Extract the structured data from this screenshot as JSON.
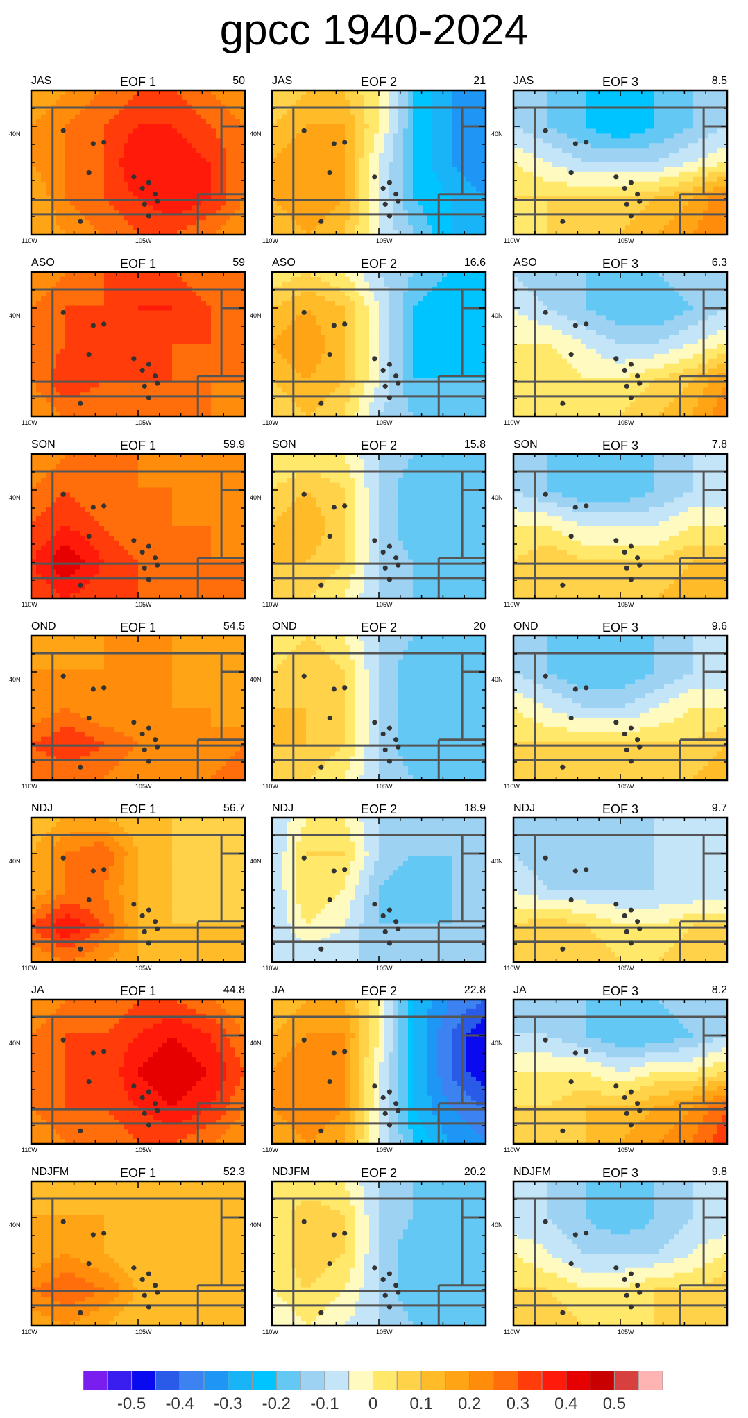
{
  "title": "gpcc 1940-2024",
  "lat_label": "40N",
  "lon_labels": [
    "110W",
    "105W"
  ],
  "colorbar": {
    "colors": [
      "#7a1ef0",
      "#3a1ef0",
      "#0a0af0",
      "#2a5ae8",
      "#3c82f0",
      "#1e96f5",
      "#19b4f8",
      "#00c4ff",
      "#64c8f5",
      "#9ed2f2",
      "#c4e4f8",
      "#fffac0",
      "#ffe86a",
      "#ffd24a",
      "#ffbc28",
      "#ffa414",
      "#ff8c0a",
      "#ff6e0a",
      "#ff3c0a",
      "#ff1a0a",
      "#e60000",
      "#c80000",
      "#d84040",
      "#ffb4b4"
    ],
    "labels": [
      "-0.5",
      "-0.4",
      "-0.3",
      "-0.2",
      "-0.1",
      "0",
      "0.1",
      "0.2",
      "0.3",
      "0.4",
      "0.5"
    ]
  },
  "chart_data": {
    "type": "heatmap",
    "columns": [
      "EOF 1",
      "EOF 2",
      "EOF 3"
    ],
    "rows": [
      {
        "season": "JAS",
        "pct": [
          "50",
          "21",
          "8.5"
        ]
      },
      {
        "season": "ASO",
        "pct": [
          "59",
          "16.6",
          "6.3"
        ]
      },
      {
        "season": "SON",
        "pct": [
          "59.9",
          "15.8",
          "7.8"
        ]
      },
      {
        "season": "OND",
        "pct": [
          "54.5",
          "20",
          "9.6"
        ]
      },
      {
        "season": "NDJ",
        "pct": [
          "56.7",
          "18.9",
          "9.7"
        ]
      },
      {
        "season": "JA",
        "pct": [
          "44.8",
          "22.8",
          "8.2"
        ]
      },
      {
        "season": "NDJFM",
        "pct": [
          "52.3",
          "20.2",
          "9.8"
        ]
      }
    ],
    "fields": {
      "EOF 1": [
        [
          [
            0.2,
            0.25,
            0.3,
            0.35,
            0.35,
            0.3,
            0.25
          ],
          [
            0.25,
            0.3,
            0.35,
            0.4,
            0.4,
            0.35,
            0.3
          ],
          [
            0.25,
            0.3,
            0.35,
            0.45,
            0.45,
            0.4,
            0.3
          ],
          [
            0.2,
            0.3,
            0.35,
            0.4,
            0.45,
            0.4,
            0.3
          ],
          [
            0.2,
            0.25,
            0.3,
            0.35,
            0.35,
            0.3,
            0.25
          ]
        ],
        [
          [
            0.25,
            0.3,
            0.35,
            0.35,
            0.35,
            0.3,
            0.3
          ],
          [
            0.3,
            0.35,
            0.35,
            0.4,
            0.4,
            0.35,
            0.3
          ],
          [
            0.3,
            0.35,
            0.35,
            0.4,
            0.35,
            0.35,
            0.3
          ],
          [
            0.3,
            0.4,
            0.35,
            0.35,
            0.35,
            0.3,
            0.3
          ],
          [
            0.25,
            0.3,
            0.3,
            0.3,
            0.3,
            0.3,
            0.25
          ]
        ],
        [
          [
            0.25,
            0.3,
            0.3,
            0.3,
            0.25,
            0.25,
            0.25
          ],
          [
            0.3,
            0.35,
            0.3,
            0.3,
            0.3,
            0.25,
            0.25
          ],
          [
            0.35,
            0.4,
            0.35,
            0.3,
            0.3,
            0.3,
            0.25
          ],
          [
            0.4,
            0.5,
            0.4,
            0.35,
            0.3,
            0.3,
            0.3
          ],
          [
            0.35,
            0.4,
            0.35,
            0.35,
            0.35,
            0.3,
            0.3
          ]
        ],
        [
          [
            0.2,
            0.2,
            0.25,
            0.25,
            0.25,
            0.2,
            0.2
          ],
          [
            0.25,
            0.25,
            0.25,
            0.25,
            0.25,
            0.2,
            0.2
          ],
          [
            0.25,
            0.3,
            0.25,
            0.25,
            0.25,
            0.25,
            0.2
          ],
          [
            0.35,
            0.4,
            0.35,
            0.3,
            0.25,
            0.25,
            0.3
          ],
          [
            0.3,
            0.3,
            0.3,
            0.25,
            0.25,
            0.3,
            0.35
          ]
        ],
        [
          [
            0.15,
            0.2,
            0.2,
            0.15,
            0.15,
            0.15,
            0.15
          ],
          [
            0.2,
            0.3,
            0.35,
            0.2,
            0.15,
            0.1,
            0.15
          ],
          [
            0.2,
            0.3,
            0.3,
            0.2,
            0.15,
            0.1,
            0.15
          ],
          [
            0.35,
            0.45,
            0.35,
            0.2,
            0.15,
            0.15,
            0.15
          ],
          [
            0.25,
            0.3,
            0.25,
            0.2,
            0.15,
            0.15,
            0.15
          ]
        ],
        [
          [
            0.25,
            0.3,
            0.3,
            0.35,
            0.35,
            0.3,
            0.25
          ],
          [
            0.3,
            0.35,
            0.35,
            0.4,
            0.45,
            0.4,
            0.3
          ],
          [
            0.3,
            0.35,
            0.35,
            0.45,
            0.5,
            0.45,
            0.35
          ],
          [
            0.3,
            0.35,
            0.35,
            0.4,
            0.45,
            0.4,
            0.3
          ],
          [
            0.25,
            0.3,
            0.3,
            0.35,
            0.35,
            0.3,
            0.25
          ]
        ],
        [
          [
            0.15,
            0.15,
            0.15,
            0.15,
            0.15,
            0.15,
            0.15
          ],
          [
            0.2,
            0.2,
            0.2,
            0.15,
            0.15,
            0.15,
            0.15
          ],
          [
            0.2,
            0.25,
            0.2,
            0.15,
            0.15,
            0.15,
            0.15
          ],
          [
            0.3,
            0.35,
            0.3,
            0.2,
            0.15,
            0.15,
            0.15
          ],
          [
            0.2,
            0.25,
            0.2,
            0.15,
            0.15,
            0.15,
            0.15
          ]
        ]
      ],
      "EOF 2": [
        [
          [
            0.1,
            0.15,
            0.15,
            0.05,
            -0.15,
            -0.25,
            -0.3
          ],
          [
            0.15,
            0.2,
            0.2,
            0.05,
            -0.15,
            -0.25,
            -0.3
          ],
          [
            0.2,
            0.25,
            0.2,
            0.0,
            -0.15,
            -0.25,
            -0.3
          ],
          [
            0.2,
            0.25,
            0.2,
            0.0,
            -0.15,
            -0.2,
            -0.25
          ],
          [
            0.15,
            0.2,
            0.15,
            0.0,
            -0.1,
            -0.2,
            -0.2
          ]
        ],
        [
          [
            0.05,
            0.1,
            0.05,
            -0.05,
            -0.1,
            -0.15,
            -0.15
          ],
          [
            0.15,
            0.2,
            0.15,
            0.0,
            -0.15,
            -0.2,
            -0.15
          ],
          [
            0.2,
            0.25,
            0.15,
            0.0,
            -0.15,
            -0.2,
            -0.15
          ],
          [
            0.15,
            0.2,
            0.15,
            0.0,
            -0.15,
            -0.15,
            -0.15
          ],
          [
            0.1,
            0.15,
            0.1,
            -0.05,
            -0.1,
            -0.15,
            -0.1
          ]
        ],
        [
          [
            0.05,
            0.05,
            0.05,
            -0.05,
            -0.1,
            -0.1,
            -0.1
          ],
          [
            0.1,
            0.15,
            0.1,
            -0.05,
            -0.15,
            -0.15,
            -0.1
          ],
          [
            0.15,
            0.2,
            0.1,
            -0.05,
            -0.15,
            -0.15,
            -0.1
          ],
          [
            0.15,
            0.15,
            0.1,
            -0.05,
            -0.1,
            -0.15,
            -0.1
          ],
          [
            0.1,
            0.1,
            0.05,
            -0.05,
            -0.1,
            -0.1,
            -0.1
          ]
        ],
        [
          [
            0.05,
            0.1,
            0.05,
            -0.05,
            -0.1,
            -0.1,
            -0.1
          ],
          [
            0.1,
            0.15,
            0.1,
            -0.05,
            -0.15,
            -0.15,
            -0.15
          ],
          [
            0.15,
            0.15,
            0.1,
            -0.05,
            -0.15,
            -0.15,
            -0.15
          ],
          [
            0.15,
            0.15,
            0.1,
            -0.05,
            -0.15,
            -0.15,
            -0.15
          ],
          [
            0.1,
            0.1,
            0.05,
            -0.05,
            -0.1,
            -0.1,
            -0.1
          ]
        ],
        [
          [
            -0.05,
            0.05,
            0.05,
            -0.05,
            -0.1,
            -0.05,
            -0.05
          ],
          [
            -0.05,
            0.1,
            0.1,
            -0.05,
            -0.1,
            -0.1,
            -0.05
          ],
          [
            -0.05,
            0.1,
            0.05,
            -0.1,
            -0.15,
            -0.1,
            -0.05
          ],
          [
            -0.05,
            0.05,
            0.0,
            -0.1,
            -0.1,
            -0.1,
            -0.05
          ],
          [
            -0.05,
            -0.05,
            -0.05,
            -0.05,
            -0.05,
            -0.05,
            -0.05
          ]
        ],
        [
          [
            0.15,
            0.2,
            0.2,
            0.05,
            -0.2,
            -0.3,
            -0.35
          ],
          [
            0.2,
            0.25,
            0.25,
            0.05,
            -0.2,
            -0.35,
            -0.45
          ],
          [
            0.25,
            0.3,
            0.25,
            0.0,
            -0.2,
            -0.35,
            -0.45
          ],
          [
            0.25,
            0.3,
            0.25,
            0.0,
            -0.2,
            -0.3,
            -0.35
          ],
          [
            0.2,
            0.25,
            0.2,
            0.0,
            -0.15,
            -0.25,
            -0.3
          ]
        ],
        [
          [
            0.05,
            0.05,
            0.05,
            -0.05,
            -0.1,
            -0.1,
            -0.1
          ],
          [
            0.05,
            0.15,
            0.1,
            -0.05,
            -0.1,
            -0.15,
            -0.1
          ],
          [
            0.05,
            0.15,
            0.1,
            -0.05,
            -0.15,
            -0.15,
            -0.15
          ],
          [
            0.05,
            0.1,
            0.05,
            -0.05,
            -0.15,
            -0.15,
            -0.15
          ],
          [
            0.0,
            0.05,
            0.0,
            -0.05,
            -0.1,
            -0.15,
            -0.15
          ]
        ]
      ],
      "EOF 3": [
        [
          [
            -0.05,
            -0.1,
            -0.15,
            -0.2,
            -0.15,
            -0.1,
            -0.05
          ],
          [
            -0.05,
            -0.1,
            -0.15,
            -0.2,
            -0.15,
            -0.1,
            -0.05
          ],
          [
            0.05,
            0.0,
            -0.05,
            -0.05,
            -0.05,
            0.0,
            0.05
          ],
          [
            0.1,
            0.1,
            0.1,
            0.1,
            0.15,
            0.2,
            0.3
          ],
          [
            0.05,
            0.1,
            0.1,
            0.15,
            0.2,
            0.25,
            0.3
          ]
        ],
        [
          [
            -0.05,
            -0.1,
            -0.1,
            -0.15,
            -0.1,
            -0.05,
            -0.05
          ],
          [
            0.0,
            -0.05,
            -0.1,
            -0.15,
            -0.15,
            -0.1,
            -0.05
          ],
          [
            0.05,
            0.05,
            0.0,
            -0.05,
            -0.05,
            0.0,
            0.05
          ],
          [
            0.05,
            0.1,
            0.05,
            0.05,
            0.1,
            0.15,
            0.25
          ],
          [
            0.05,
            0.05,
            0.05,
            0.1,
            0.15,
            0.2,
            0.3
          ]
        ],
        [
          [
            -0.05,
            -0.1,
            -0.15,
            -0.15,
            -0.1,
            -0.05,
            -0.05
          ],
          [
            -0.05,
            -0.1,
            -0.15,
            -0.15,
            -0.1,
            -0.05,
            -0.05
          ],
          [
            0.05,
            0.05,
            0.0,
            0.0,
            0.0,
            0.05,
            0.05
          ],
          [
            0.1,
            0.15,
            0.1,
            0.1,
            0.1,
            0.15,
            0.15
          ],
          [
            0.1,
            0.15,
            0.15,
            0.15,
            0.15,
            0.2,
            0.2
          ]
        ],
        [
          [
            -0.05,
            -0.1,
            -0.15,
            -0.1,
            -0.1,
            -0.05,
            -0.05
          ],
          [
            -0.05,
            -0.1,
            -0.15,
            -0.15,
            -0.1,
            -0.05,
            -0.05
          ],
          [
            0.05,
            0.0,
            -0.05,
            -0.05,
            0.0,
            0.05,
            0.05
          ],
          [
            0.1,
            0.1,
            0.1,
            0.1,
            0.1,
            0.1,
            0.15
          ],
          [
            0.15,
            0.15,
            0.15,
            0.15,
            0.15,
            0.15,
            0.2
          ]
        ],
        [
          [
            -0.05,
            -0.05,
            -0.1,
            -0.1,
            -0.05,
            -0.05,
            -0.05
          ],
          [
            -0.05,
            -0.1,
            -0.1,
            -0.1,
            -0.05,
            -0.05,
            -0.05
          ],
          [
            0.0,
            -0.05,
            -0.05,
            -0.05,
            -0.05,
            -0.05,
            -0.05
          ],
          [
            0.1,
            0.15,
            0.1,
            0.05,
            0.05,
            0.1,
            0.1
          ],
          [
            0.1,
            0.15,
            0.15,
            0.1,
            0.1,
            0.15,
            0.15
          ]
        ],
        [
          [
            -0.05,
            -0.1,
            -0.1,
            -0.15,
            -0.1,
            -0.05,
            -0.05
          ],
          [
            -0.05,
            -0.05,
            -0.1,
            -0.15,
            -0.15,
            -0.1,
            -0.05
          ],
          [
            0.05,
            0.05,
            0.05,
            0.0,
            0.05,
            0.05,
            0.1
          ],
          [
            0.1,
            0.1,
            0.15,
            0.15,
            0.2,
            0.25,
            0.35
          ],
          [
            0.1,
            0.15,
            0.15,
            0.2,
            0.25,
            0.3,
            0.4
          ]
        ],
        [
          [
            -0.05,
            -0.05,
            -0.1,
            -0.15,
            -0.1,
            -0.05,
            -0.05
          ],
          [
            -0.05,
            -0.05,
            -0.1,
            -0.15,
            -0.1,
            -0.05,
            -0.05
          ],
          [
            0.05,
            0.0,
            -0.05,
            -0.05,
            -0.05,
            0.0,
            0.05
          ],
          [
            0.1,
            0.1,
            0.05,
            0.05,
            0.1,
            0.1,
            0.15
          ],
          [
            0.15,
            0.15,
            0.1,
            0.1,
            0.1,
            0.15,
            0.15
          ]
        ]
      ]
    },
    "stations": [
      [
        0.15,
        0.28
      ],
      [
        0.29,
        0.37
      ],
      [
        0.34,
        0.36
      ],
      [
        0.27,
        0.57
      ],
      [
        0.48,
        0.6
      ],
      [
        0.55,
        0.64
      ],
      [
        0.52,
        0.68
      ],
      [
        0.58,
        0.72
      ],
      [
        0.59,
        0.77
      ],
      [
        0.55,
        0.87
      ],
      [
        0.23,
        0.91
      ],
      [
        0.53,
        0.79
      ]
    ]
  }
}
